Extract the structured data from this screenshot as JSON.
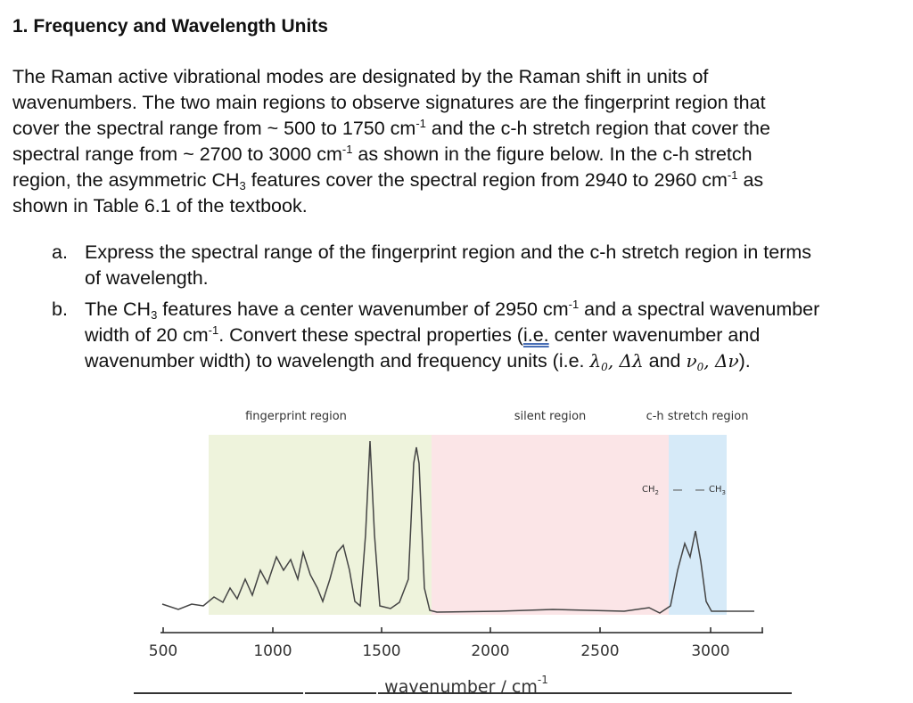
{
  "heading": "1. Frequency and Wavelength Units",
  "intro": [
    [
      "The Raman active vibrational modes are designated by the Raman shift in units of"
    ],
    [
      "wavenumbers. The two main regions to observe signatures are the fingerprint region that"
    ],
    [
      "cover the spectral range from ~ 500 to 1750 cm",
      "-1",
      " and the c-h stretch region that cover the"
    ],
    [
      "spectral range from ~ 2700 to 3000 cm",
      "-1",
      " as shown in the figure below. In the c-h stretch"
    ],
    [
      "region, the asymmetric CH",
      "3",
      " features cover the spectral region from 2940 to 2960 cm",
      "-1",
      " as"
    ],
    [
      "shown in Table 6.1 of the textbook."
    ]
  ],
  "questions": [
    {
      "marker": "a.",
      "lines": [
        [
          "Express the spectral range of the fingerprint region and the c-h stretch region in terms"
        ],
        [
          "of wavelength."
        ]
      ]
    },
    {
      "marker": "b.",
      "lines": [
        [
          "The CH",
          "3",
          " features have a center wavenumber of 2950 cm",
          "-1",
          " and a spectral wavenumber"
        ],
        [
          "width of 20 cm",
          "-1",
          ". Convert these spectral properties (",
          "i.e.",
          " center wavenumber and"
        ],
        [
          "wavenumber width) to wavelength and frequency units (i.e. ",
          "λ",
          "0",
          ", Δλ",
          " and ",
          "ν",
          "0",
          ", Δν",
          ")."
        ]
      ]
    }
  ],
  "figure": {
    "regions": [
      "fingerprint region",
      "silent region",
      "c-h stretch region"
    ],
    "groups": [
      [
        "CH",
        "2"
      ],
      [
        "CH",
        "3"
      ]
    ],
    "x_ticks": [
      "500",
      "1000",
      "1500",
      "2000",
      "2500",
      "3000"
    ],
    "x_label": [
      "wavenumber / cm",
      "-1"
    ]
  }
}
